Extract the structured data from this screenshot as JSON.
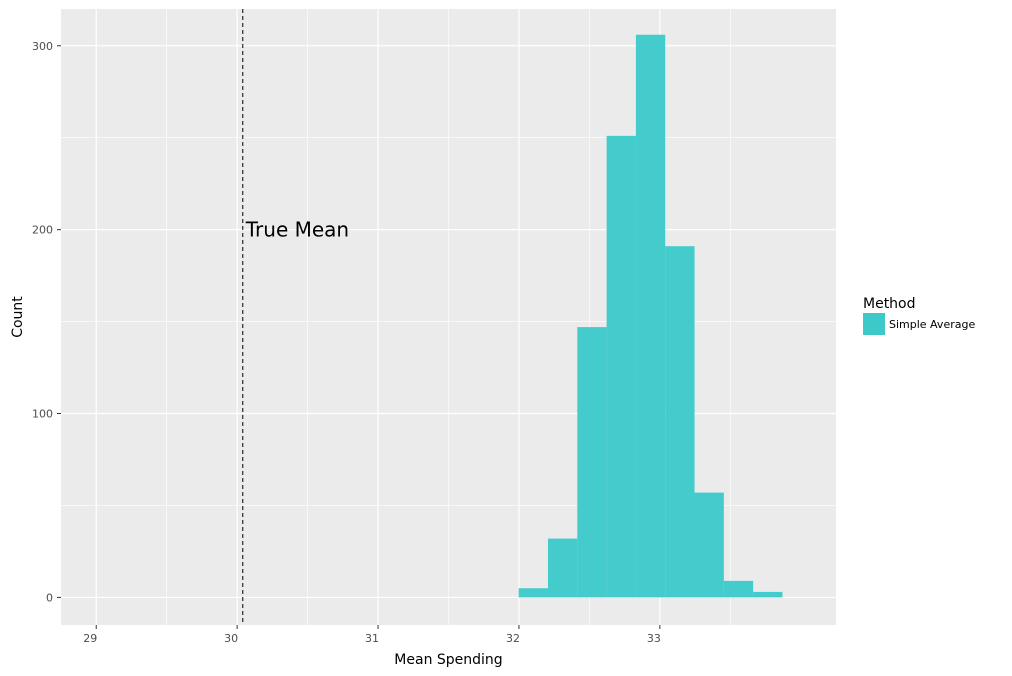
{
  "chart_data": {
    "type": "bar",
    "subtype": "histogram",
    "xlabel": "Mean Spending",
    "ylabel": "Count",
    "xlim": [
      28.75,
      34.25
    ],
    "ylim": [
      -15,
      320
    ],
    "x_ticks": [
      29,
      30,
      31,
      32,
      33
    ],
    "y_ticks": [
      0,
      100,
      200,
      300
    ],
    "grid": true,
    "legend": {
      "title": "Method",
      "position": "right",
      "entries": [
        {
          "label": "Simple Average",
          "color": "#3ec9c9"
        }
      ]
    },
    "series": [
      {
        "name": "Simple Average",
        "color": "#3ec9c9",
        "bin_width": 0.208,
        "bins": [
          {
            "x0": 31.998,
            "x1": 32.206,
            "count": 5
          },
          {
            "x0": 32.206,
            "x1": 32.414,
            "count": 32
          },
          {
            "x0": 32.414,
            "x1": 32.622,
            "count": 147
          },
          {
            "x0": 32.622,
            "x1": 32.83,
            "count": 251
          },
          {
            "x0": 32.83,
            "x1": 33.038,
            "count": 306
          },
          {
            "x0": 33.038,
            "x1": 33.246,
            "count": 191
          },
          {
            "x0": 33.246,
            "x1": 33.454,
            "count": 57
          },
          {
            "x0": 33.454,
            "x1": 33.662,
            "count": 9
          },
          {
            "x0": 33.662,
            "x1": 33.87,
            "count": 3
          }
        ]
      }
    ],
    "reference_line": {
      "x": 30.04,
      "style": "dashed",
      "label": "True Mean",
      "label_y": 200
    }
  },
  "colors": {
    "panel_bg": "#ebebeb",
    "grid": "#ffffff",
    "bar": "#3ec9c9",
    "text": "#000000",
    "tick_text": "#4d4d4d"
  }
}
